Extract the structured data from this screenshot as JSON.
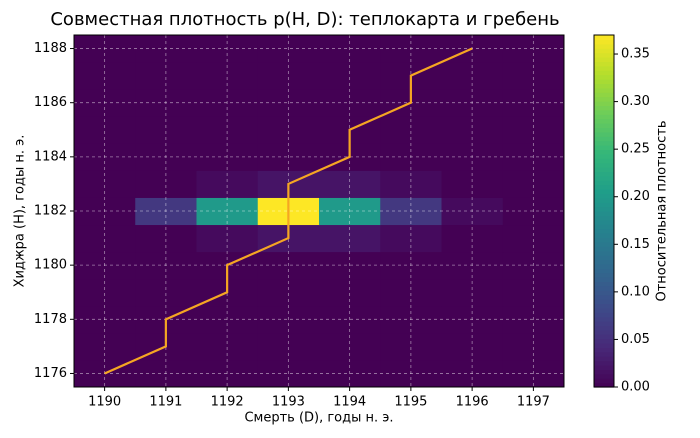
{
  "chart_data": {
    "type": "heatmap",
    "title": "Совместная плотность p(H, D): теплокарта и гребень",
    "x_label": "Смерть (D), годы н. э.",
    "y_label": "Хиджра (H), годы н. э.",
    "colorbar_label": "Относительная плотность",
    "x": [
      1190,
      1191,
      1192,
      1193,
      1194,
      1195,
      1196,
      1197
    ],
    "y": [
      1176,
      1177,
      1178,
      1179,
      1180,
      1181,
      1182,
      1183,
      1184,
      1185,
      1186,
      1187,
      1188
    ],
    "z": [
      [
        0,
        0,
        0,
        0,
        0,
        0,
        0,
        0
      ],
      [
        0,
        0,
        0,
        0,
        0,
        0,
        0,
        0
      ],
      [
        0,
        0,
        0,
        0,
        0,
        0,
        0,
        0
      ],
      [
        0,
        0,
        0,
        0,
        0,
        0,
        0,
        0
      ],
      [
        0,
        0,
        0,
        0,
        0,
        0,
        0,
        0
      ],
      [
        0,
        0,
        0.01,
        0.02,
        0.02,
        0.01,
        0,
        0
      ],
      [
        0,
        0.06,
        0.2,
        0.37,
        0.2,
        0.06,
        0.01,
        0
      ],
      [
        0,
        0,
        0.01,
        0.02,
        0.02,
        0.01,
        0,
        0
      ],
      [
        0,
        0,
        0,
        0,
        0,
        0,
        0,
        0
      ],
      [
        0,
        0,
        0,
        0,
        0,
        0,
        0,
        0
      ],
      [
        0,
        0,
        0,
        0,
        0,
        0,
        0,
        0
      ],
      [
        0,
        0,
        0,
        0,
        0,
        0,
        0,
        0
      ],
      [
        0,
        0,
        0,
        0,
        0,
        0,
        0,
        0
      ]
    ],
    "colormap": "viridis",
    "clim": [
      0,
      0.37
    ],
    "cticks": [
      {
        "value": 0,
        "label": "0.00"
      },
      0.05,
      {
        "value": 0.1,
        "label": "0.10"
      },
      0.15,
      {
        "value": 0.2,
        "label": "0.20"
      },
      0.25,
      {
        "value": 0.3,
        "label": "0.30"
      },
      0.35
    ],
    "xlim": [
      1189.5,
      1197.5
    ],
    "ylim": [
      1175.5,
      1188.5
    ],
    "xticks": [
      1190,
      1191,
      1192,
      1193,
      1194,
      1195,
      1196,
      1197
    ],
    "yticks": [
      1176,
      1178,
      1180,
      1182,
      1184,
      1186,
      1188
    ],
    "grid": true,
    "series": [
      {
        "type": "line",
        "color": "#f5a623",
        "x": [
          1190,
          1191,
          1191,
          1192,
          1192,
          1193,
          1193,
          1194,
          1194,
          1195,
          1195,
          1196
        ],
        "values": [
          1176,
          1177,
          1178,
          1179,
          1180,
          1181,
          1183,
          1184,
          1185,
          1186,
          1187,
          1188
        ]
      }
    ]
  }
}
